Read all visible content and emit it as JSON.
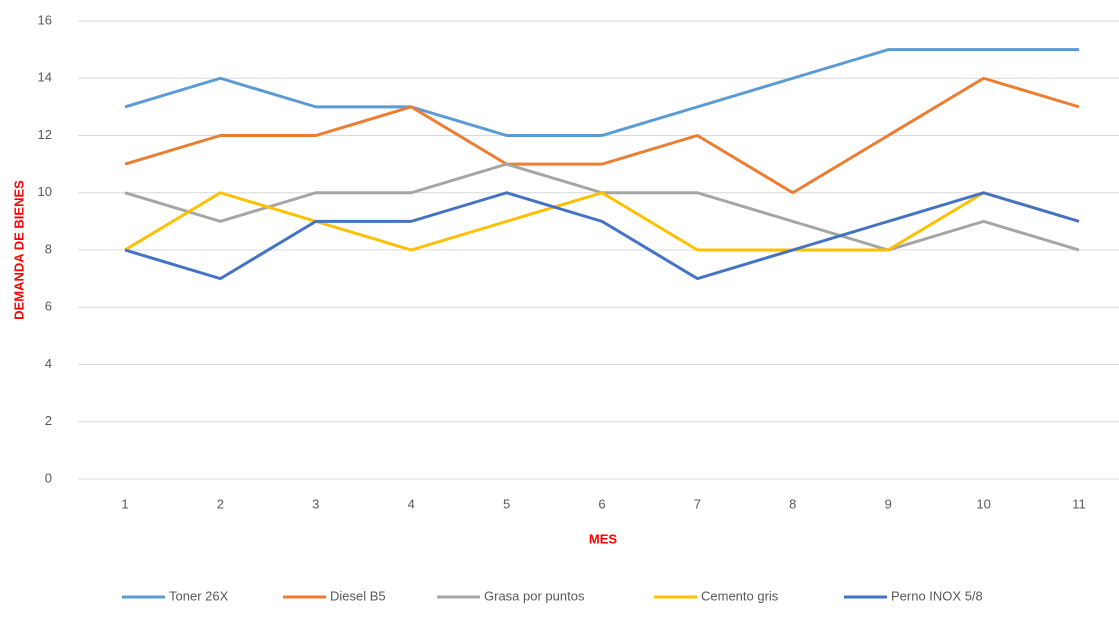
{
  "chart_data": {
    "type": "line",
    "x_label": "MES",
    "y_label": "DEMANDA DE BIENES",
    "categories": [
      "1",
      "2",
      "3",
      "4",
      "5",
      "6",
      "7",
      "8",
      "9",
      "10",
      "11"
    ],
    "series": [
      {
        "name": "Toner 26X",
        "color": "#5b9bd5",
        "values": [
          13,
          14,
          13,
          13,
          12,
          12,
          13,
          14,
          15,
          15,
          15
        ]
      },
      {
        "name": "Diesel B5",
        "color": "#ed7d31",
        "values": [
          11,
          12,
          12,
          13,
          11,
          11,
          12,
          10,
          12,
          14,
          13
        ]
      },
      {
        "name": "Grasa por puntos",
        "color": "#a5a5a5",
        "values": [
          10,
          9,
          10,
          10,
          11,
          10,
          10,
          9,
          8,
          9,
          8
        ]
      },
      {
        "name": "Cemento gris",
        "color": "#ffc000",
        "values": [
          8,
          10,
          9,
          8,
          9,
          10,
          8,
          8,
          8,
          10,
          9
        ]
      },
      {
        "name": "Perno INOX 5/8",
        "color": "#4472c4",
        "values": [
          8,
          7,
          9,
          9,
          10,
          9,
          7,
          8,
          9,
          10,
          9
        ]
      }
    ],
    "ylim": [
      0,
      16
    ],
    "yticks": [
      0,
      2,
      4,
      6,
      8,
      10,
      12,
      14,
      16
    ],
    "grid": true,
    "legend": "bottom"
  }
}
